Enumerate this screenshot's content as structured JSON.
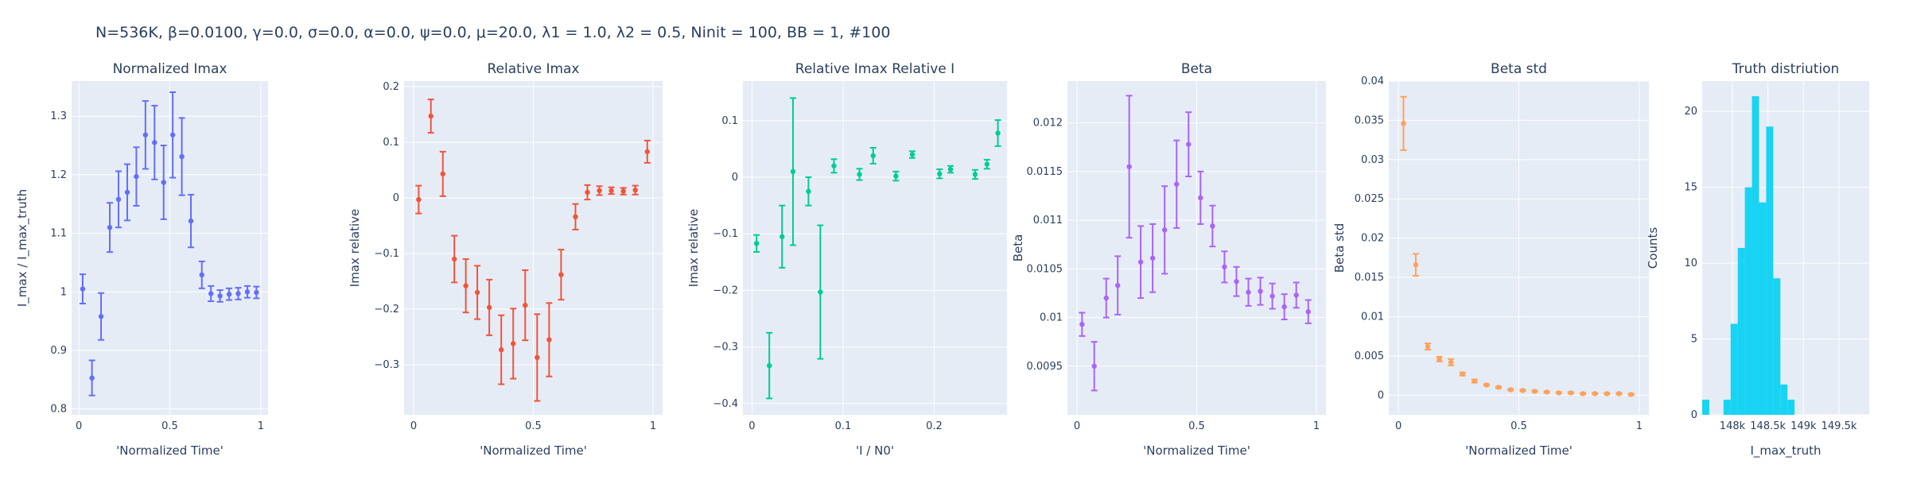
{
  "figure": {
    "title": "N=536K, β=0.0100, γ=0.0, σ=0.0,  α=0.0, ψ=0.0, μ=20.0, λ1 = 1.0, λ2 = 0.5, Ninit = 100, BB = 1, #100"
  },
  "chart_data": [
    {
      "type": "scatter",
      "title": "Normalized Imax",
      "xlabel": "'Normalized Time'",
      "ylabel": "I_max / I_max_truth",
      "color": "#636efa",
      "xlim": [
        -0.04,
        1.04
      ],
      "ylim": [
        0.79,
        1.36
      ],
      "xticks": [
        0,
        0.5,
        1
      ],
      "xtick_labels": [
        "0",
        "0.5",
        "1"
      ],
      "yticks": [
        0.8,
        0.9,
        1.0,
        1.1,
        1.2,
        1.3
      ],
      "ytick_labels": [
        "0.8",
        "0.9",
        "1",
        "1.1",
        "1.2",
        "1.3"
      ],
      "grid": true,
      "points": [
        {
          "x": 0.021,
          "y": 1.005,
          "err": 0.025
        },
        {
          "x": 0.072,
          "y": 0.853,
          "err": 0.03
        },
        {
          "x": 0.122,
          "y": 0.958,
          "err": 0.04
        },
        {
          "x": 0.17,
          "y": 1.11,
          "err": 0.042
        },
        {
          "x": 0.218,
          "y": 1.158,
          "err": 0.048
        },
        {
          "x": 0.266,
          "y": 1.17,
          "err": 0.048
        },
        {
          "x": 0.316,
          "y": 1.197,
          "err": 0.05
        },
        {
          "x": 0.366,
          "y": 1.268,
          "err": 0.058
        },
        {
          "x": 0.416,
          "y": 1.255,
          "err": 0.063
        },
        {
          "x": 0.466,
          "y": 1.187,
          "err": 0.063
        },
        {
          "x": 0.516,
          "y": 1.268,
          "err": 0.073
        },
        {
          "x": 0.566,
          "y": 1.231,
          "err": 0.066
        },
        {
          "x": 0.616,
          "y": 1.121,
          "err": 0.045
        },
        {
          "x": 0.676,
          "y": 1.029,
          "err": 0.023
        },
        {
          "x": 0.726,
          "y": 0.997,
          "err": 0.013
        },
        {
          "x": 0.776,
          "y": 0.993,
          "err": 0.01
        },
        {
          "x": 0.826,
          "y": 0.996,
          "err": 0.01
        },
        {
          "x": 0.876,
          "y": 0.997,
          "err": 0.01
        },
        {
          "x": 0.926,
          "y": 1.0,
          "err": 0.01
        },
        {
          "x": 0.976,
          "y": 0.999,
          "err": 0.01
        }
      ]
    },
    {
      "type": "scatter",
      "title": "Relative Imax",
      "xlabel": "'Normalized Time'",
      "ylabel": "Imax relative",
      "color": "#ef553b",
      "xlim": [
        -0.04,
        1.04
      ],
      "ylim": [
        -0.39,
        0.21
      ],
      "xticks": [
        0,
        0.5,
        1
      ],
      "xtick_labels": [
        "0",
        "0.5",
        "1"
      ],
      "yticks": [
        -0.3,
        -0.2,
        -0.1,
        0,
        0.1,
        0.2
      ],
      "ytick_labels": [
        "−0.3",
        "−0.2",
        "−0.1",
        "0",
        "0.1",
        "0.2"
      ],
      "grid": true,
      "points": [
        {
          "x": 0.021,
          "y": -0.003,
          "err": 0.025
        },
        {
          "x": 0.072,
          "y": 0.147,
          "err": 0.03
        },
        {
          "x": 0.122,
          "y": 0.043,
          "err": 0.04
        },
        {
          "x": 0.17,
          "y": -0.11,
          "err": 0.042
        },
        {
          "x": 0.218,
          "y": -0.158,
          "err": 0.048
        },
        {
          "x": 0.266,
          "y": -0.17,
          "err": 0.048
        },
        {
          "x": 0.316,
          "y": -0.197,
          "err": 0.05
        },
        {
          "x": 0.366,
          "y": -0.273,
          "err": 0.062
        },
        {
          "x": 0.416,
          "y": -0.262,
          "err": 0.063
        },
        {
          "x": 0.466,
          "y": -0.193,
          "err": 0.063
        },
        {
          "x": 0.516,
          "y": -0.287,
          "err": 0.078
        },
        {
          "x": 0.566,
          "y": -0.255,
          "err": 0.066
        },
        {
          "x": 0.616,
          "y": -0.138,
          "err": 0.045
        },
        {
          "x": 0.676,
          "y": -0.034,
          "err": 0.023
        },
        {
          "x": 0.726,
          "y": 0.01,
          "err": 0.013
        },
        {
          "x": 0.776,
          "y": 0.013,
          "err": 0.008
        },
        {
          "x": 0.826,
          "y": 0.013,
          "err": 0.006
        },
        {
          "x": 0.876,
          "y": 0.012,
          "err": 0.006
        },
        {
          "x": 0.926,
          "y": 0.014,
          "err": 0.008
        },
        {
          "x": 0.976,
          "y": 0.083,
          "err": 0.02
        }
      ]
    },
    {
      "type": "scatter",
      "title": "Relative Imax Relative I",
      "xlabel": "'I / N0'",
      "ylabel": "Imax relative",
      "color": "#00cc96",
      "xlim": [
        -0.01,
        0.28
      ],
      "ylim": [
        -0.42,
        0.17
      ],
      "xticks": [
        0,
        0.1,
        0.2
      ],
      "xtick_labels": [
        "0",
        "0.1",
        "0.2"
      ],
      "yticks": [
        -0.4,
        -0.3,
        -0.2,
        -0.1,
        0,
        0.1
      ],
      "ytick_labels": [
        "−0.4",
        "−0.3",
        "−0.2",
        "−0.1",
        "0",
        "0.1"
      ],
      "grid": true,
      "points": [
        {
          "x": 0.005,
          "y": -0.117,
          "err": 0.015
        },
        {
          "x": 0.019,
          "y": -0.333,
          "err": 0.058
        },
        {
          "x": 0.033,
          "y": -0.105,
          "err": 0.055
        },
        {
          "x": 0.045,
          "y": 0.01,
          "err": 0.13
        },
        {
          "x": 0.062,
          "y": -0.025,
          "err": 0.025
        },
        {
          "x": 0.075,
          "y": -0.203,
          "err": 0.118
        },
        {
          "x": 0.09,
          "y": 0.02,
          "err": 0.012
        },
        {
          "x": 0.118,
          "y": 0.005,
          "err": 0.01
        },
        {
          "x": 0.133,
          "y": 0.038,
          "err": 0.014
        },
        {
          "x": 0.158,
          "y": 0.002,
          "err": 0.008
        },
        {
          "x": 0.176,
          "y": 0.04,
          "err": 0.006
        },
        {
          "x": 0.206,
          "y": 0.006,
          "err": 0.008
        },
        {
          "x": 0.218,
          "y": 0.014,
          "err": 0.006
        },
        {
          "x": 0.245,
          "y": 0.005,
          "err": 0.008
        },
        {
          "x": 0.258,
          "y": 0.023,
          "err": 0.008
        },
        {
          "x": 0.27,
          "y": 0.078,
          "err": 0.023
        }
      ]
    },
    {
      "type": "scatter",
      "title": "Beta",
      "xlabel": "'Normalized Time'",
      "ylabel": "Beta",
      "color": "#ab63fa",
      "xlim": [
        -0.04,
        1.04
      ],
      "ylim": [
        0.009,
        0.01243
      ],
      "xticks": [
        0,
        0.5,
        1
      ],
      "xtick_labels": [
        "0",
        "0.5",
        "1"
      ],
      "yticks": [
        0.0095,
        0.01,
        0.0105,
        0.011,
        0.0115,
        0.012
      ],
      "ytick_labels": [
        "0.0095",
        "0.01",
        "0.0105",
        "0.011",
        "0.0115",
        "0.012"
      ],
      "grid": true,
      "points": [
        {
          "x": 0.021,
          "y": 0.00993,
          "err": 0.00012
        },
        {
          "x": 0.072,
          "y": 0.0095,
          "err": 0.00025
        },
        {
          "x": 0.122,
          "y": 0.0102,
          "err": 0.0002
        },
        {
          "x": 0.17,
          "y": 0.01033,
          "err": 0.0003
        },
        {
          "x": 0.218,
          "y": 0.01155,
          "err": 0.00073
        },
        {
          "x": 0.266,
          "y": 0.01057,
          "err": 0.00037
        },
        {
          "x": 0.316,
          "y": 0.01061,
          "err": 0.00035
        },
        {
          "x": 0.366,
          "y": 0.0109,
          "err": 0.00045
        },
        {
          "x": 0.416,
          "y": 0.01137,
          "err": 0.00045
        },
        {
          "x": 0.466,
          "y": 0.01178,
          "err": 0.00033
        },
        {
          "x": 0.516,
          "y": 0.01123,
          "err": 0.00027
        },
        {
          "x": 0.566,
          "y": 0.01094,
          "err": 0.00021
        },
        {
          "x": 0.616,
          "y": 0.01052,
          "err": 0.00016
        },
        {
          "x": 0.666,
          "y": 0.01037,
          "err": 0.00015
        },
        {
          "x": 0.716,
          "y": 0.01026,
          "err": 0.00014
        },
        {
          "x": 0.766,
          "y": 0.01027,
          "err": 0.00014
        },
        {
          "x": 0.816,
          "y": 0.01022,
          "err": 0.00013
        },
        {
          "x": 0.866,
          "y": 0.01011,
          "err": 0.00013
        },
        {
          "x": 0.916,
          "y": 0.01023,
          "err": 0.00013
        },
        {
          "x": 0.966,
          "y": 0.01006,
          "err": 0.00012
        }
      ]
    },
    {
      "type": "scatter",
      "title": "Beta std",
      "xlabel": "'Normalized Time'",
      "ylabel": "Beta std",
      "color": "#ffa15a",
      "xlim": [
        -0.04,
        1.04
      ],
      "ylim": [
        -0.0025,
        0.04
      ],
      "xticks": [
        0,
        0.5,
        1
      ],
      "xtick_labels": [
        "0",
        "0.5",
        "1"
      ],
      "yticks": [
        0,
        0.005,
        0.01,
        0.015,
        0.02,
        0.025,
        0.03,
        0.035,
        0.04
      ],
      "ytick_labels": [
        "0",
        "0.005",
        "0.01",
        "0.015",
        "0.02",
        "0.025",
        "0.03",
        "0.035",
        "0.04"
      ],
      "grid": true,
      "points": [
        {
          "x": 0.021,
          "y": 0.0346,
          "err": 0.0034
        },
        {
          "x": 0.072,
          "y": 0.0166,
          "err": 0.0014
        },
        {
          "x": 0.122,
          "y": 0.0062,
          "err": 0.0004
        },
        {
          "x": 0.17,
          "y": 0.0046,
          "err": 0.0003
        },
        {
          "x": 0.218,
          "y": 0.0042,
          "err": 0.0004
        },
        {
          "x": 0.266,
          "y": 0.0027,
          "err": 0.0002
        },
        {
          "x": 0.316,
          "y": 0.0018,
          "err": 0.0002
        },
        {
          "x": 0.366,
          "y": 0.0013,
          "err": 0.0001
        },
        {
          "x": 0.416,
          "y": 0.001,
          "err": 0.0001
        },
        {
          "x": 0.466,
          "y": 0.0007,
          "err": 0.0001
        },
        {
          "x": 0.516,
          "y": 0.0006,
          "err": 0.0001
        },
        {
          "x": 0.566,
          "y": 0.0005,
          "err": 0.0001
        },
        {
          "x": 0.616,
          "y": 0.0004,
          "err": 0.0001
        },
        {
          "x": 0.666,
          "y": 0.0003,
          "err": 0.0001
        },
        {
          "x": 0.716,
          "y": 0.0003,
          "err": 0.0001
        },
        {
          "x": 0.766,
          "y": 0.0002,
          "err": 0.0001
        },
        {
          "x": 0.816,
          "y": 0.0002,
          "err": 0.0001
        },
        {
          "x": 0.866,
          "y": 0.0002,
          "err": 0.0001
        },
        {
          "x": 0.916,
          "y": 0.0002,
          "err": 0.0001
        },
        {
          "x": 0.966,
          "y": 0.0001,
          "err": 0.0001
        }
      ]
    },
    {
      "type": "bar",
      "title": "Truth distriution",
      "xlabel": "I_max_truth",
      "ylabel": "Counts",
      "color": "#19d3f3",
      "xlim": [
        147575,
        149925
      ],
      "ylim": [
        0,
        22
      ],
      "xticks": [
        148000,
        148500,
        149000,
        149500
      ],
      "xtick_labels": [
        "148k",
        "148.5k",
        "149k",
        "149.5k"
      ],
      "yticks": [
        0,
        5,
        10,
        15,
        20
      ],
      "ytick_labels": [
        "0",
        "5",
        "10",
        "15",
        "20"
      ],
      "grid": true,
      "bin_width": 100,
      "bin_starts": [
        147575,
        147875,
        147975,
        148075,
        148175,
        148275,
        148375,
        148475,
        148575,
        148675,
        148775,
        148875
      ],
      "counts": [
        1,
        1,
        6,
        11,
        15,
        21,
        14,
        19,
        9,
        2,
        1,
        0
      ]
    }
  ]
}
